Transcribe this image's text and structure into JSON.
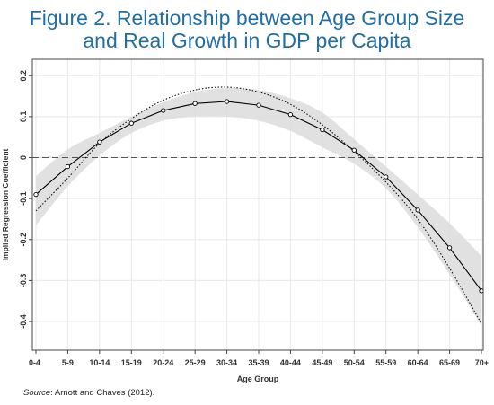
{
  "title_line1": "Figure 2. Relationship between Age Group Size",
  "title_line2": "and Real Growth in GDP per Capita",
  "source_label": "Source",
  "source_text": ": Arnott and Chaves (2012).",
  "colors": {
    "title": "#1f6ea6",
    "band": "#dcdcdc",
    "line": "#000000",
    "grid": "#e8e8e8"
  },
  "chart_data": {
    "type": "line",
    "xlabel": "Age Group",
    "ylabel": "Implied Regression Coefficient",
    "categories": [
      "0-4",
      "5-9",
      "10-14",
      "15-19",
      "20-24",
      "25-29",
      "30-34",
      "35-39",
      "40-44",
      "45-49",
      "50-54",
      "55-59",
      "60-64",
      "65-69",
      "70+"
    ],
    "ylim": [
      -0.47,
      0.24
    ],
    "yticks": [
      0.2,
      0.1,
      0.0,
      -0.1,
      -0.2,
      -0.3,
      -0.4
    ],
    "ytick_labels": [
      "0.2",
      "0.1",
      "0",
      "-0.1",
      "-0.2",
      "-0.3",
      "-0.4"
    ],
    "reference_line": 0,
    "grid": true,
    "series": [
      {
        "style": "solid-with-markers",
        "values": [
          -0.09,
          -0.022,
          0.038,
          0.084,
          0.115,
          0.132,
          0.137,
          0.128,
          0.105,
          0.068,
          0.018,
          -0.047,
          -0.128,
          -0.22,
          -0.325
        ]
      },
      {
        "style": "dotted",
        "values": [
          -0.13,
          -0.05,
          0.035,
          0.095,
          0.14,
          0.165,
          0.172,
          0.16,
          0.13,
          0.08,
          0.015,
          -0.06,
          -0.15,
          -0.27,
          -0.405
        ]
      },
      {
        "style": "confidence-band",
        "upper": [
          -0.045,
          0.02,
          0.06,
          0.1,
          0.135,
          0.16,
          0.17,
          0.165,
          0.145,
          0.11,
          0.045,
          -0.022,
          -0.09,
          -0.16,
          -0.24
        ],
        "lower": [
          -0.165,
          -0.07,
          0.005,
          0.06,
          0.09,
          0.1,
          0.1,
          0.09,
          0.065,
          0.025,
          -0.015,
          -0.075,
          -0.17,
          -0.285,
          -0.41
        ]
      }
    ]
  }
}
